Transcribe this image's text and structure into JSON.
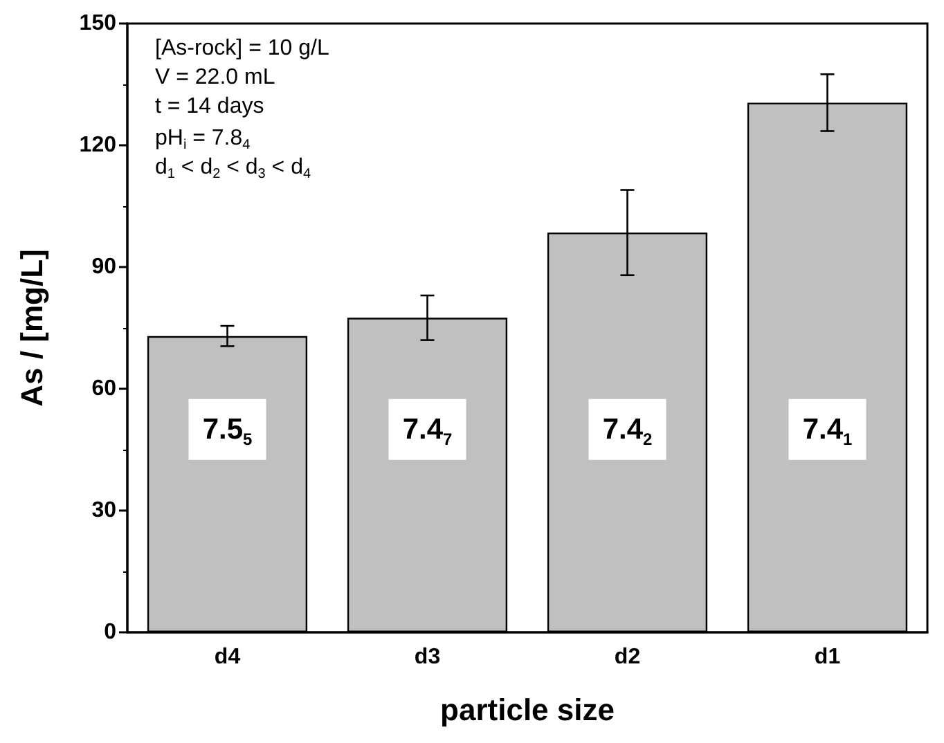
{
  "chart_data": {
    "type": "bar",
    "xlabel": "particle size",
    "ylabel": "As / [mg/L]",
    "categories": [
      "d4",
      "d3",
      "d2",
      "d1"
    ],
    "values": [
      73,
      77.5,
      98.5,
      130.5
    ],
    "errors": [
      2.5,
      5.5,
      10.5,
      7
    ],
    "color": "#c0c0c0",
    "ylim": [
      0,
      150
    ],
    "yticks": [
      0,
      30,
      60,
      90,
      120,
      150
    ],
    "grid": false,
    "annotations": [
      "[As-rock] = 10 g/L",
      "V = 22.0 mL",
      "t = 14 days",
      "pH$_{i}$ = 7.8$_{4}$",
      "d$_{1}$ < d$_{2}$ < d$_{3}$ < d$_{4}$",
      "7.5$_{5}$",
      "7.4$_{7}$",
      "7.4$_{2}$",
      "7.4$_{1}$"
    ]
  }
}
